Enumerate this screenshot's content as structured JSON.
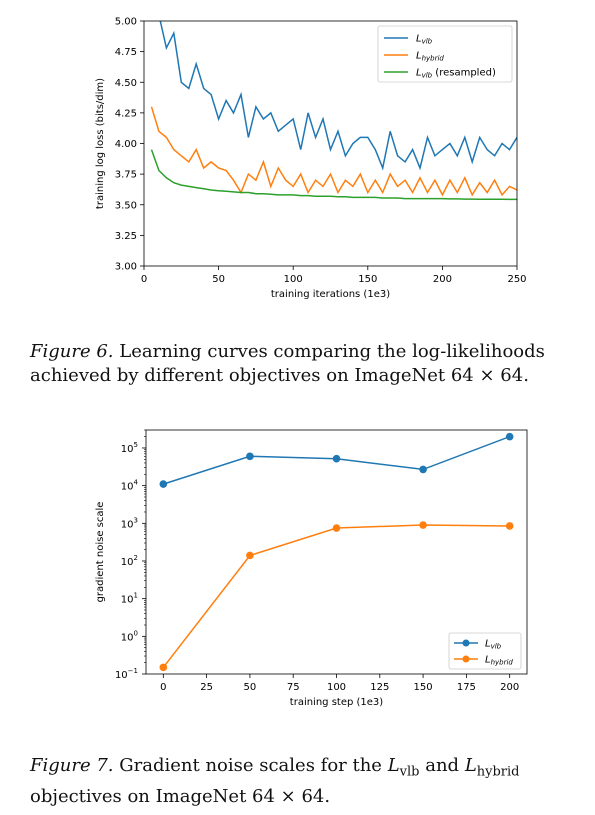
{
  "chart_data": [
    {
      "type": "line",
      "xlabel": "training iterations (1e3)",
      "ylabel": "training log loss (bits/dim)",
      "xlim": [
        0,
        250
      ],
      "ylim": [
        3.0,
        5.0
      ],
      "xticks": [
        "0",
        "50",
        "100",
        "150",
        "200",
        "250"
      ],
      "yticks": [
        "3.00",
        "3.25",
        "3.50",
        "3.75",
        "4.00",
        "4.25",
        "4.50",
        "4.75",
        "5.00"
      ],
      "legend_position": "top-right",
      "grid": false,
      "x": [
        5,
        10,
        15,
        20,
        25,
        30,
        35,
        40,
        45,
        50,
        55,
        60,
        65,
        70,
        75,
        80,
        85,
        90,
        95,
        100,
        105,
        110,
        115,
        120,
        125,
        130,
        135,
        140,
        145,
        150,
        155,
        160,
        165,
        170,
        175,
        180,
        185,
        190,
        195,
        200,
        205,
        210,
        215,
        220,
        225,
        230,
        235,
        240,
        245,
        250
      ],
      "series": [
        {
          "name": "L_vlb",
          "color": "#1f77b4",
          "values": [
            5.2,
            5.05,
            4.78,
            4.9,
            4.5,
            4.45,
            4.65,
            4.45,
            4.4,
            4.2,
            4.35,
            4.25,
            4.4,
            4.05,
            4.3,
            4.2,
            4.25,
            4.1,
            4.15,
            4.2,
            3.95,
            4.25,
            4.05,
            4.2,
            3.95,
            4.1,
            3.9,
            4.0,
            4.05,
            4.05,
            3.95,
            3.8,
            4.1,
            3.9,
            3.85,
            3.95,
            3.8,
            4.05,
            3.9,
            3.95,
            4.0,
            3.9,
            4.05,
            3.85,
            4.05,
            3.95,
            3.9,
            4.0,
            3.95,
            4.05
          ]
        },
        {
          "name": "L_hybrid",
          "color": "#ff7f0e",
          "values": [
            4.3,
            4.1,
            4.05,
            3.95,
            3.9,
            3.85,
            3.95,
            3.8,
            3.85,
            3.8,
            3.78,
            3.7,
            3.6,
            3.75,
            3.7,
            3.85,
            3.65,
            3.8,
            3.7,
            3.65,
            3.75,
            3.6,
            3.7,
            3.65,
            3.75,
            3.6,
            3.7,
            3.65,
            3.75,
            3.6,
            3.7,
            3.6,
            3.75,
            3.65,
            3.7,
            3.6,
            3.72,
            3.6,
            3.7,
            3.58,
            3.7,
            3.6,
            3.72,
            3.58,
            3.68,
            3.6,
            3.7,
            3.58,
            3.65,
            3.62
          ]
        },
        {
          "name": "L_vlb (resampled)",
          "color": "#2ca02c",
          "values": [
            3.95,
            3.78,
            3.72,
            3.68,
            3.66,
            3.65,
            3.64,
            3.63,
            3.62,
            3.615,
            3.61,
            3.605,
            3.6,
            3.6,
            3.59,
            3.59,
            3.585,
            3.58,
            3.58,
            3.58,
            3.575,
            3.575,
            3.57,
            3.57,
            3.57,
            3.565,
            3.565,
            3.56,
            3.56,
            3.56,
            3.56,
            3.555,
            3.555,
            3.555,
            3.55,
            3.55,
            3.55,
            3.55,
            3.55,
            3.55,
            3.548,
            3.548,
            3.546,
            3.546,
            3.545,
            3.545,
            3.545,
            3.545,
            3.544,
            3.544
          ]
        }
      ]
    },
    {
      "type": "line",
      "xlabel": "training step (1e3)",
      "ylabel": "gradient noise scale",
      "yscale": "log",
      "xlim": [
        -10,
        210
      ],
      "ylim": [
        0.1,
        300000
      ],
      "xticks": [
        "0",
        "25",
        "50",
        "75",
        "100",
        "125",
        "150",
        "175",
        "200"
      ],
      "yticks": [
        "10",
        "10",
        "10",
        "10",
        "10",
        "10",
        "10"
      ],
      "ytick_exponents": [
        "−1",
        "0",
        "1",
        "2",
        "3",
        "4",
        "5"
      ],
      "legend_position": "lower-right",
      "grid": false,
      "x": [
        0,
        50,
        100,
        150,
        200
      ],
      "series": [
        {
          "name": "L_vlb",
          "color": "#1f77b4",
          "values": [
            11000,
            60000,
            52000,
            27000,
            200000
          ]
        },
        {
          "name": "L_hybrid",
          "color": "#ff7f0e",
          "values": [
            0.15,
            140,
            750,
            900,
            850
          ]
        }
      ]
    }
  ],
  "captions": {
    "fig6": {
      "label": "Figure 6.",
      "text": "Learning curves comparing the log-likelihoods achieved by different objectives on ImageNet 64 × 64."
    },
    "fig7": {
      "label": "Figure 7.",
      "text_before": "Gradient noise scales for the",
      "math1": "L",
      "sub1": "vlb",
      "middle": "and",
      "math2": "L",
      "sub2": "hybrid",
      "text_after": "objectives on ImageNet 64 × 64."
    }
  }
}
